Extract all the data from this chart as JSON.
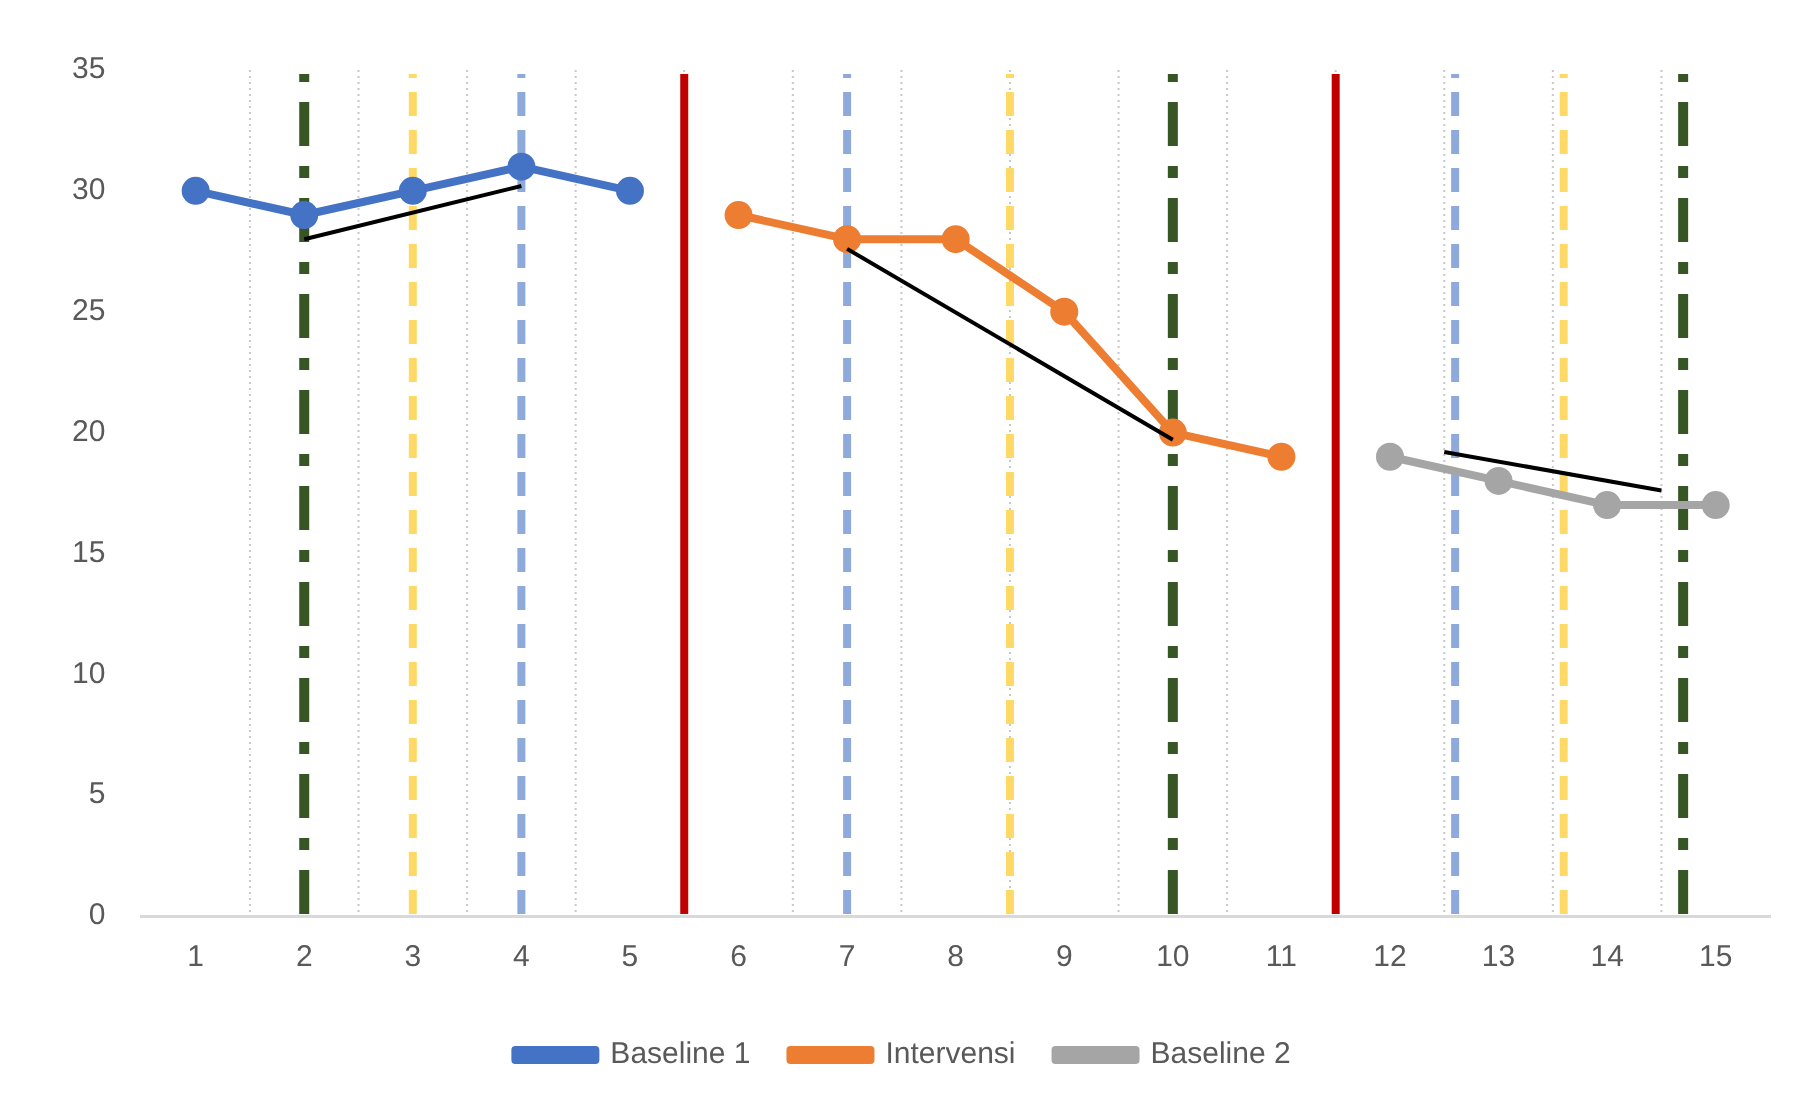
{
  "chart_data": {
    "type": "line",
    "xlim": [
      0.5,
      15.5
    ],
    "xticks": [
      1,
      2,
      3,
      4,
      5,
      6,
      7,
      8,
      9,
      10,
      11,
      12,
      13,
      14,
      15
    ],
    "ylim": [
      0,
      35
    ],
    "yticks": [
      0,
      5,
      10,
      15,
      20,
      25,
      30,
      35
    ],
    "grid": "x",
    "legend": "bottom",
    "marker": "circle",
    "series": [
      {
        "name": "Baseline 1",
        "color": "#4472c4",
        "x": [
          1,
          2,
          3,
          4,
          5
        ],
        "values": [
          30,
          29,
          30,
          31,
          30
        ]
      },
      {
        "name": "Intervensi",
        "color": "#ed7d31",
        "x": [
          6,
          7,
          8,
          9,
          10,
          11
        ],
        "values": [
          29,
          28,
          28,
          25,
          20,
          19
        ]
      },
      {
        "name": "Baseline 2",
        "color": "#a5a5a5",
        "x": [
          12,
          13,
          14,
          15
        ],
        "values": [
          19,
          18,
          17,
          17
        ]
      },
      {
        "type": "line",
        "color": "#000000",
        "marker": "none",
        "x": [
          2,
          4
        ],
        "values": [
          28,
          30.2
        ]
      },
      {
        "type": "line",
        "color": "#000000",
        "marker": "none",
        "x": [
          7,
          10
        ],
        "values": [
          27.6,
          19.7
        ]
      },
      {
        "type": "line",
        "color": "#000000",
        "marker": "none",
        "x": [
          12.5,
          14.5
        ],
        "values": [
          19.2,
          17.6
        ]
      }
    ],
    "ref_lines": [
      {
        "axis": "x",
        "value": 2,
        "color": "#375623",
        "line_style": "dashdot"
      },
      {
        "axis": "x",
        "value": 3,
        "color": "#ffd966",
        "line_style": "dashed"
      },
      {
        "axis": "x",
        "value": 4,
        "color": "#8eaadb",
        "line_style": "dashed"
      },
      {
        "axis": "x",
        "value": 5.5,
        "color": "#c00000",
        "line_style": "solid"
      },
      {
        "axis": "x",
        "value": 7,
        "color": "#8eaadb",
        "line_style": "dashed"
      },
      {
        "axis": "x",
        "value": 8.5,
        "color": "#ffd966",
        "line_style": "dashed"
      },
      {
        "axis": "x",
        "value": 10,
        "color": "#375623",
        "line_style": "dashdot"
      },
      {
        "axis": "x",
        "value": 11.5,
        "color": "#c00000",
        "line_style": "solid"
      },
      {
        "axis": "x",
        "value": 12.6,
        "color": "#8eaadb",
        "line_style": "dashed"
      },
      {
        "axis": "x",
        "value": 13.6,
        "color": "#ffd966",
        "line_style": "dashed"
      },
      {
        "axis": "x",
        "value": 14.7,
        "color": "#375623",
        "line_style": "dashdot"
      }
    ]
  }
}
